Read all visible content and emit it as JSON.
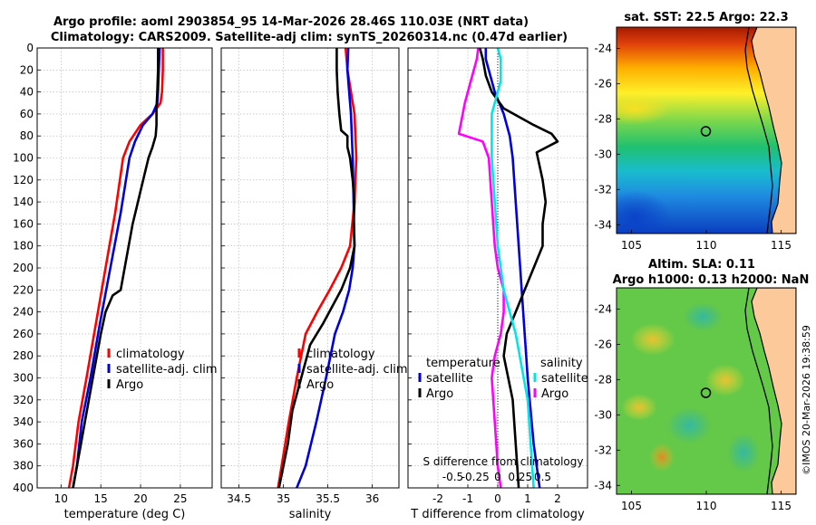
{
  "header": {
    "line1": "Argo profile: aoml 2903854_95 14-Mar-2026 28.46S 110.03E (NRT data)",
    "line2": "Climatology: CARS2009. Satellite-adj clim: synTS_20260314.nc (0.47d earlier)"
  },
  "colors": {
    "climatology": "#ff0000",
    "satellite": "#0000dd",
    "argo": "#000000",
    "t_diff": "#ff00ff",
    "s_diff": "#00e5e5"
  },
  "chart_data": [
    {
      "id": "temperature",
      "type": "line",
      "xlabel": "temperature (deg C)",
      "ylabel": "",
      "xlim": [
        7,
        29
      ],
      "ylim": [
        400,
        0
      ],
      "xticks": [
        10,
        15,
        20,
        25
      ],
      "xtick_labels": [
        "10",
        "15",
        "20",
        "25"
      ],
      "yticks": [
        0,
        20,
        40,
        60,
        80,
        100,
        120,
        140,
        160,
        180,
        200,
        220,
        240,
        260,
        280,
        300,
        320,
        340,
        360,
        380,
        400
      ],
      "ytick_labels": [
        "0",
        "20",
        "40",
        "60",
        "80",
        "100",
        "120",
        "140",
        "160",
        "180",
        "200",
        "220",
        "240",
        "260",
        "280",
        "300",
        "320",
        "340",
        "360",
        "380",
        "400"
      ],
      "grid": true,
      "legend_position": "center-right",
      "legend": [
        "climatology",
        "satellite-adj. clim",
        "Argo"
      ],
      "series": [
        {
          "name": "climatology",
          "color": "#ff0000",
          "x": [
            22.8,
            22.8,
            22.7,
            22.5,
            21.5,
            20.0,
            18.6,
            17.8,
            16.8,
            15.6,
            14.4,
            13.2,
            12.2,
            11.5,
            11.0
          ],
          "y": [
            0,
            20,
            40,
            50,
            60,
            70,
            85,
            100,
            150,
            200,
            250,
            300,
            340,
            380,
            400
          ]
        },
        {
          "name": "satellite-adj. clim",
          "color": "#0000dd",
          "x": [
            22.4,
            22.3,
            22.2,
            22.1,
            21.5,
            20.3,
            19.3,
            18.6,
            17.5,
            16.2,
            14.9,
            13.7,
            12.6,
            12.0,
            11.5
          ],
          "y": [
            0,
            20,
            40,
            50,
            60,
            70,
            85,
            100,
            150,
            200,
            250,
            300,
            340,
            380,
            400
          ]
        },
        {
          "name": "Argo",
          "color": "#000000",
          "x": [
            22.2,
            22.2,
            22.1,
            22.0,
            22.0,
            21.9,
            21.5,
            21.0,
            20.5,
            20.0,
            19.5,
            19.0,
            18.5,
            18.0,
            17.5,
            16.5,
            15.6,
            15.0,
            14.5,
            14.0,
            13.5,
            13.0,
            12.5,
            12.0,
            11.5
          ],
          "y": [
            0,
            20,
            40,
            55,
            70,
            80,
            90,
            100,
            115,
            130,
            145,
            160,
            180,
            200,
            220,
            225,
            240,
            260,
            280,
            300,
            320,
            340,
            360,
            380,
            400
          ]
        }
      ]
    },
    {
      "id": "salinity",
      "type": "line",
      "xlabel": "salinity",
      "ylabel": "",
      "xlim": [
        34.3,
        36.3
      ],
      "ylim": [
        400,
        0
      ],
      "xticks": [
        34.5,
        35,
        35.5,
        36
      ],
      "xtick_labels": [
        "34.5",
        "35",
        "35.5",
        "36"
      ],
      "grid": true,
      "legend_position": "center-left",
      "legend": [
        "climatology",
        "satellite-adj. clim",
        "Argo"
      ],
      "series": [
        {
          "name": "climatology",
          "color": "#ff0000",
          "x": [
            35.7,
            35.72,
            35.76,
            35.8,
            35.82,
            35.8,
            35.75,
            35.65,
            35.52,
            35.38,
            35.25,
            35.15,
            35.06,
            34.98,
            34.94
          ],
          "y": [
            0,
            20,
            40,
            60,
            100,
            140,
            180,
            200,
            220,
            240,
            260,
            300,
            340,
            380,
            400
          ]
        },
        {
          "name": "satellite-adj. clim",
          "color": "#0000dd",
          "x": [
            35.73,
            35.72,
            35.74,
            35.76,
            35.78,
            35.79,
            35.8,
            35.78,
            35.74,
            35.67,
            35.58,
            35.48,
            35.37,
            35.25,
            35.15
          ],
          "y": [
            0,
            20,
            40,
            60,
            100,
            140,
            180,
            200,
            220,
            240,
            260,
            300,
            340,
            380,
            400
          ]
        },
        {
          "name": "Argo",
          "color": "#000000",
          "x": [
            35.6,
            35.6,
            35.61,
            35.63,
            35.65,
            35.72,
            35.72,
            35.75,
            35.78,
            35.8,
            35.79,
            35.8,
            35.75,
            35.65,
            35.55,
            35.45,
            35.3,
            35.2,
            35.1,
            35.05,
            35.0,
            34.95
          ],
          "y": [
            0,
            20,
            40,
            60,
            75,
            80,
            90,
            100,
            120,
            140,
            160,
            180,
            200,
            220,
            235,
            250,
            270,
            300,
            330,
            360,
            380,
            400
          ]
        }
      ]
    },
    {
      "id": "differences",
      "type": "line",
      "xlabel": "T difference from climatology",
      "top_xlabel": "S difference from climatology",
      "xlim": [
        -3,
        3
      ],
      "ylim": [
        400,
        0
      ],
      "xticks": [
        -2,
        -1,
        0,
        1,
        2
      ],
      "xtick_labels": [
        "-2",
        "-1",
        "0",
        "1",
        "2"
      ],
      "top_xticks": [
        -1.5,
        -0.75,
        0,
        0.75,
        1.5
      ],
      "top_xtick_labels": [
        "-0.5",
        "-0.25",
        "0",
        "0.25",
        "0.5"
      ],
      "grid": true,
      "legend_position": "center",
      "legend_titles": [
        "temperature",
        "salinity"
      ],
      "legend": [
        "satellite",
        "Argo",
        "satellite"
      ],
      "series": [
        {
          "name": "satellite-temperature",
          "color": "#0000dd",
          "x": [
            -0.4,
            -0.4,
            -0.3,
            -0.1,
            0.2,
            0.4,
            0.5,
            0.6,
            0.7,
            0.8,
            0.9,
            1.0,
            1.1,
            1.2,
            1.3,
            1.4
          ],
          "y": [
            0,
            10,
            20,
            40,
            60,
            80,
            100,
            140,
            180,
            220,
            260,
            300,
            330,
            360,
            380,
            400
          ]
        },
        {
          "name": "Argo-temperature",
          "color": "#000000",
          "x": [
            -0.6,
            -0.5,
            -0.4,
            -0.2,
            0.2,
            1.2,
            1.8,
            2.0,
            1.3,
            1.5,
            1.6,
            1.5,
            1.5,
            1.2,
            0.9,
            0.6,
            0.3,
            0.2,
            0.5,
            0.6,
            0.7
          ],
          "y": [
            0,
            10,
            25,
            40,
            55,
            70,
            78,
            85,
            95,
            120,
            140,
            160,
            180,
            200,
            220,
            240,
            260,
            280,
            320,
            360,
            400
          ]
        },
        {
          "name": "Argo-salinity",
          "color": "#ff00ff",
          "x": [
            -0.65,
            -0.7,
            -0.9,
            -1.1,
            -1.3,
            -0.5,
            -0.3,
            -0.2,
            -0.1,
            0.0,
            0.2,
            0.2,
            0.1,
            -0.1,
            -0.2,
            -0.1,
            0.0,
            0.1
          ],
          "y": [
            0,
            10,
            30,
            50,
            78,
            85,
            100,
            140,
            180,
            200,
            220,
            240,
            260,
            280,
            300,
            340,
            380,
            400
          ]
        },
        {
          "name": "satellite-salinity",
          "color": "#00e5e5",
          "x": [
            0.0,
            0.1,
            0.1,
            -0.2,
            -0.2,
            -0.1,
            0.0,
            0.1,
            0.2,
            0.4,
            0.6,
            0.8,
            1.0,
            1.1,
            1.2
          ],
          "y": [
            0,
            10,
            30,
            60,
            100,
            140,
            180,
            200,
            220,
            240,
            260,
            290,
            320,
            360,
            400
          ]
        }
      ]
    },
    {
      "id": "sst-map",
      "type": "heatmap",
      "title": "sat. SST: 22.5 Argo: 22.3",
      "xlim": [
        104,
        116
      ],
      "ylim": [
        -34.5,
        -22.8
      ],
      "xticks": [
        105,
        110,
        115
      ],
      "xtick_labels": [
        "105",
        "110",
        "115"
      ],
      "yticks": [
        -24,
        -26,
        -28,
        -30,
        -32,
        -34
      ],
      "ytick_labels": [
        "-24",
        "-26",
        "-28",
        "-30",
        "-32",
        "-34"
      ],
      "marker": {
        "lon": 110.03,
        "lat": -28.46
      }
    },
    {
      "id": "sla-map",
      "type": "heatmap",
      "title": "Altim. SLA: 0.11",
      "subtitle": "Argo h1000: 0.13 h2000: NaN",
      "xlim": [
        104,
        116
      ],
      "ylim": [
        -34.5,
        -22.8
      ],
      "xticks": [
        105,
        110,
        115
      ],
      "xtick_labels": [
        "105",
        "110",
        "115"
      ],
      "yticks": [
        -24,
        -26,
        -28,
        -30,
        -32,
        -34
      ],
      "ytick_labels": [
        "-24",
        "-26",
        "-28",
        "-30",
        "-32",
        "-34"
      ],
      "marker": {
        "lon": 110.03,
        "lat": -28.46
      }
    }
  ],
  "footer": {
    "stamp": "©IMOS 20-Mar-2026 19:38:59"
  }
}
